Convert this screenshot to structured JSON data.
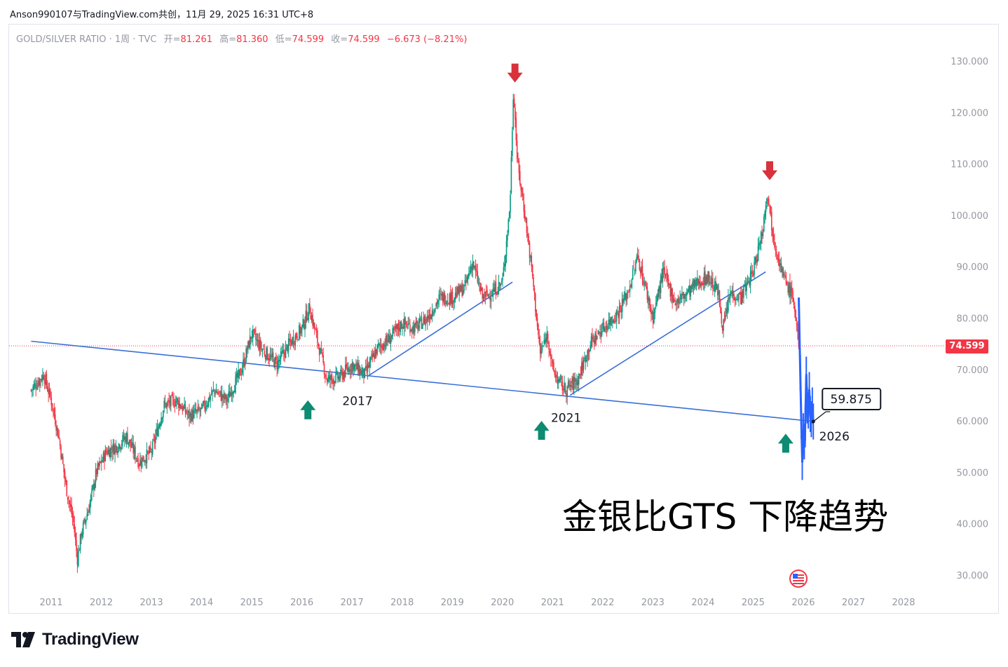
{
  "attribution": "Anson990107与TradingView.com共创，11月 29, 2025 16:31 UTC+8",
  "legend": {
    "symbol": "GOLD/SILVER RATIO · 1周 · TVC",
    "open_label": "开=",
    "open": "81.261",
    "high_label": "高=",
    "high": "81.360",
    "low_label": "低=",
    "low": "74.599",
    "close_label": "收=",
    "close": "74.599",
    "change": "−6.673 (−8.21%)"
  },
  "last_price_badge": "74.599",
  "headline": "金银比GTS 下降趋势",
  "logo_text": "TradingView",
  "colors": {
    "up": "#089981",
    "down": "#f23645",
    "trendline": "#3a6fd8",
    "projection": "#2962ff",
    "current_price": "#f23645"
  },
  "chart_data": {
    "type": "candlestick",
    "title": "GOLD/SILVER RATIO",
    "interval": "1周",
    "x_axis": {
      "type": "time",
      "ticks": [
        "2011",
        "2012",
        "2013",
        "2014",
        "2015",
        "2016",
        "2017",
        "2018",
        "2019",
        "2020",
        "2021",
        "2022",
        "2023",
        "2024",
        "2025",
        "2026",
        "2027",
        "2028"
      ]
    },
    "y_axis": {
      "position": "right",
      "range": [
        27,
        133
      ],
      "ticks": [
        "30.000",
        "40.000",
        "50.000",
        "60.000",
        "70.000",
        "80.000",
        "90.000",
        "100.000",
        "110.000",
        "120.000",
        "130.000"
      ]
    },
    "price_path": [
      [
        2010.6,
        66.0
      ],
      [
        2010.85,
        69.0
      ],
      [
        2011.0,
        64.0
      ],
      [
        2011.15,
        57.0
      ],
      [
        2011.3,
        47.0
      ],
      [
        2011.45,
        40.0
      ],
      [
        2011.52,
        33.0
      ],
      [
        2011.6,
        38.0
      ],
      [
        2011.75,
        43.0
      ],
      [
        2011.9,
        50.0
      ],
      [
        2012.1,
        54.0
      ],
      [
        2012.3,
        55.0
      ],
      [
        2012.5,
        57.0
      ],
      [
        2012.75,
        52.0
      ],
      [
        2013.0,
        54.0
      ],
      [
        2013.25,
        63.0
      ],
      [
        2013.5,
        64.0
      ],
      [
        2013.75,
        61.0
      ],
      [
        2014.0,
        62.0
      ],
      [
        2014.25,
        66.0
      ],
      [
        2014.5,
        64.0
      ],
      [
        2014.8,
        70.0
      ],
      [
        2015.0,
        77.0
      ],
      [
        2015.2,
        74.0
      ],
      [
        2015.5,
        71.0
      ],
      [
        2015.75,
        75.0
      ],
      [
        2016.0,
        78.0
      ],
      [
        2016.15,
        82.0
      ],
      [
        2016.3,
        76.0
      ],
      [
        2016.5,
        68.0
      ],
      [
        2016.75,
        68.5
      ],
      [
        2017.0,
        71.0
      ],
      [
        2017.25,
        69.0
      ],
      [
        2017.5,
        74.0
      ],
      [
        2017.75,
        76.0
      ],
      [
        2018.0,
        79.0
      ],
      [
        2018.25,
        78.0
      ],
      [
        2018.5,
        80.0
      ],
      [
        2018.75,
        84.0
      ],
      [
        2019.0,
        84.0
      ],
      [
        2019.25,
        86.0
      ],
      [
        2019.4,
        91.0
      ],
      [
        2019.6,
        84.0
      ],
      [
        2019.8,
        85.0
      ],
      [
        2020.0,
        87.0
      ],
      [
        2020.15,
        102.0
      ],
      [
        2020.22,
        125.0
      ],
      [
        2020.3,
        110.0
      ],
      [
        2020.45,
        100.0
      ],
      [
        2020.6,
        88.0
      ],
      [
        2020.75,
        73.0
      ],
      [
        2020.9,
        77.0
      ],
      [
        2021.0,
        70.0
      ],
      [
        2021.1,
        68.0
      ],
      [
        2021.25,
        66.0
      ],
      [
        2021.5,
        68.0
      ],
      [
        2021.75,
        75.0
      ],
      [
        2022.0,
        78.0
      ],
      [
        2022.3,
        81.0
      ],
      [
        2022.5,
        85.0
      ],
      [
        2022.7,
        92.0
      ],
      [
        2022.9,
        84.0
      ],
      [
        2023.0,
        80.0
      ],
      [
        2023.2,
        89.0
      ],
      [
        2023.45,
        83.0
      ],
      [
        2023.7,
        85.0
      ],
      [
        2023.9,
        87.0
      ],
      [
        2024.1,
        88.0
      ],
      [
        2024.3,
        85.0
      ],
      [
        2024.4,
        78.0
      ],
      [
        2024.55,
        85.0
      ],
      [
        2024.75,
        84.0
      ],
      [
        2025.0,
        89.0
      ],
      [
        2025.2,
        98.0
      ],
      [
        2025.28,
        105.0
      ],
      [
        2025.4,
        96.0
      ],
      [
        2025.6,
        88.0
      ],
      [
        2025.8,
        84.0
      ],
      [
        2025.91,
        74.6
      ]
    ],
    "ohlc_last_bar": {
      "open": 81.261,
      "high": 81.36,
      "low": 74.599,
      "close": 74.599
    },
    "current_price": 74.599,
    "projection_path": [
      [
        2025.91,
        84.0
      ],
      [
        2025.93,
        74.0
      ],
      [
        2025.96,
        60.0
      ],
      [
        2025.98,
        52.0
      ],
      [
        2026.0,
        58.0
      ],
      [
        2026.03,
        55.0
      ],
      [
        2026.06,
        69.0
      ],
      [
        2026.09,
        60.0
      ],
      [
        2026.12,
        66.0
      ],
      [
        2026.15,
        59.0
      ],
      [
        2026.18,
        63.0
      ],
      [
        2026.2,
        59.875
      ]
    ],
    "trendlines": [
      {
        "from": [
          2010.6,
          75.5
        ],
        "to": [
          2026.2,
          59.9
        ]
      },
      {
        "from": [
          2017.3,
          68.6
        ],
        "to": [
          2020.2,
          87.0
        ]
      },
      {
        "from": [
          2021.35,
          65.0
        ],
        "to": [
          2025.25,
          89.0
        ]
      }
    ],
    "annotations": [
      {
        "kind": "arrow-down",
        "x": 2020.25,
        "y": 129.5,
        "color": "#d8323c"
      },
      {
        "kind": "arrow-down",
        "x": 2025.33,
        "y": 110.5,
        "color": "#d8323c"
      },
      {
        "kind": "arrow-up",
        "x": 2016.12,
        "y": 64.0,
        "color": "#0d8b73"
      },
      {
        "kind": "arrow-up",
        "x": 2020.78,
        "y": 60.0,
        "color": "#0d8b73"
      },
      {
        "kind": "arrow-up",
        "x": 2025.65,
        "y": 57.5,
        "color": "#0d8b73"
      },
      {
        "kind": "text",
        "x": 2017.11,
        "y": 63.1,
        "text": "2017"
      },
      {
        "kind": "text",
        "x": 2021.27,
        "y": 59.8,
        "text": "2021"
      },
      {
        "kind": "text",
        "x": 2026.62,
        "y": 56.2,
        "text": "2026"
      },
      {
        "kind": "callout",
        "x": 2026.2,
        "y": 59.875,
        "text": "59.875"
      }
    ]
  }
}
